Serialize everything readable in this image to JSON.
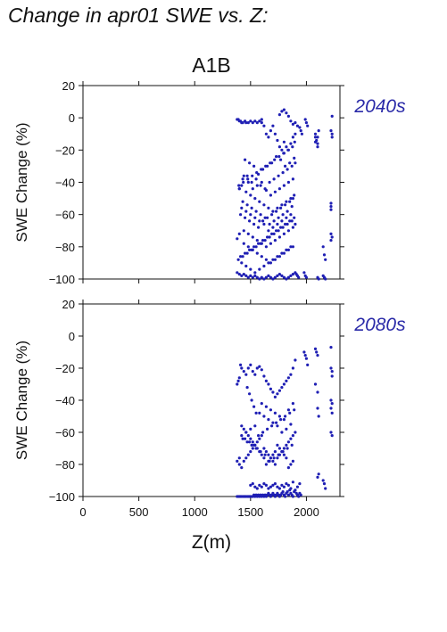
{
  "title": "Change in apr01 SWE vs. Z:",
  "scenario": "A1B",
  "colors": {
    "points": "#1f1fb4",
    "period_label": "#2a2aa8",
    "axis": "#111111"
  },
  "chart_data": [
    {
      "type": "scatter",
      "period": "2040s",
      "ylabel": "SWE Change (%)",
      "xlabel": "",
      "xlim": [
        0,
        2300
      ],
      "ylim": [
        -100,
        20
      ],
      "yticks": [
        20,
        0,
        -20,
        -40,
        -60,
        -80,
        -100
      ],
      "xticks": [
        0,
        500,
        1000,
        1500,
        2000
      ],
      "show_xtick_labels": false,
      "grid": false,
      "series": [
        {
          "x": [
            1380,
            1390,
            1400,
            1410,
            1420,
            1430,
            1450,
            1460,
            1480,
            1500,
            1520,
            1540,
            1560,
            1580,
            1600,
            1600,
            1620,
            1640,
            1660,
            1680,
            1700,
            1720,
            1740,
            1760,
            1780,
            1800,
            1800,
            1820,
            1840,
            1860,
            1880,
            1900,
            1890,
            1850,
            1810,
            1770,
            1730,
            1690,
            1650,
            1610,
            1570,
            1530,
            1490,
            1450,
            1420,
            1400,
            1430,
            1470,
            1510,
            1550,
            1590,
            1630,
            1670,
            1710,
            1750,
            1790,
            1830,
            1870,
            1900,
            1880,
            1840,
            1800,
            1760,
            1720,
            1680,
            1640,
            1600,
            1560,
            1520,
            1480,
            1440,
            1400,
            1460,
            1500,
            1540,
            1580,
            1620,
            1660,
            1700,
            1740,
            1780,
            1820,
            1860,
            1890,
            1870,
            1830,
            1790,
            1750,
            1710,
            1670,
            1630,
            1590,
            1550,
            1510,
            1470,
            1430,
            1410,
            1450,
            1490,
            1530,
            1570,
            1610,
            1650,
            1690,
            1730,
            1770,
            1810,
            1850,
            1880,
            1860,
            1820,
            1780,
            1740,
            1700,
            1660,
            1620,
            1580,
            1540,
            1500,
            1460,
            1420,
            1380,
            1400,
            1440,
            1480,
            1520,
            1560,
            1600,
            1640,
            1680,
            1720,
            1760,
            1800,
            1840,
            1880,
            1900,
            1870,
            1830,
            1790,
            1750,
            1710,
            1670,
            1630,
            1590,
            1550,
            1510,
            1470,
            1430,
            1390,
            1410,
            1450,
            1490,
            1530,
            1570,
            1610,
            1650,
            1690,
            1730,
            1770,
            1810,
            1850,
            1890,
            1880,
            1840,
            1800,
            1760,
            1720,
            1680,
            1640,
            1600,
            1560,
            1520,
            1480,
            1440,
            1420,
            1460,
            1500,
            1540,
            1580,
            1620,
            1660,
            1700,
            1740,
            1780,
            1820,
            1860,
            1895,
            1875,
            1835,
            1795,
            1755,
            1715,
            1675,
            1635,
            1595,
            1555,
            1515,
            1475,
            1435,
            1395,
            1380,
            1400,
            1420,
            1440,
            1460,
            1480,
            1500,
            1520,
            1540,
            1560,
            1580,
            1600,
            1620,
            1640,
            1660,
            1680,
            1700,
            1720,
            1740,
            1760,
            1780,
            1800,
            1820,
            1840,
            1860,
            1880,
            1900,
            1910,
            1920,
            1930,
            1760,
            1780,
            1800,
            1820,
            1840,
            1860,
            1880,
            1900,
            1920,
            1940,
            1950,
            1960,
            1990,
            2000,
            2010,
            2080,
            2090,
            2100,
            2110,
            2080,
            2100,
            2080,
            2100,
            2150,
            2160,
            2170,
            2220,
            2220,
            2220,
            2220,
            2230,
            2220,
            2230,
            2220,
            2230,
            2230,
            2150,
            2160,
            2170,
            2100,
            2110,
            1980,
            1990,
            2000
          ],
          "y": [
            -1,
            -1,
            -2,
            -2,
            -3,
            -3,
            -2,
            -3,
            -3,
            -2,
            -3,
            -2,
            -3,
            -2,
            -3,
            -1,
            -5,
            -10,
            -12,
            -8,
            -5,
            -10,
            -14,
            -18,
            -20,
            -22,
            -15,
            -18,
            -20,
            -16,
            -12,
            -10,
            -25,
            -28,
            -30,
            -26,
            -24,
            -28,
            -30,
            -32,
            -35,
            -30,
            -28,
            -26,
            -42,
            -44,
            -38,
            -36,
            -40,
            -38,
            -42,
            -44,
            -40,
            -38,
            -36,
            -34,
            -32,
            -30,
            -28,
            -38,
            -40,
            -42,
            -44,
            -46,
            -48,
            -45,
            -40,
            -42,
            -44,
            -40,
            -36,
            -44,
            -46,
            -48,
            -50,
            -52,
            -54,
            -56,
            -58,
            -56,
            -54,
            -52,
            -50,
            -48,
            -55,
            -58,
            -60,
            -62,
            -64,
            -66,
            -62,
            -60,
            -58,
            -56,
            -54,
            -52,
            -60,
            -62,
            -64,
            -66,
            -68,
            -64,
            -62,
            -60,
            -58,
            -56,
            -54,
            -52,
            -50,
            -60,
            -62,
            -64,
            -66,
            -68,
            -70,
            -66,
            -64,
            -62,
            -60,
            -58,
            -56,
            -75,
            -72,
            -70,
            -72,
            -74,
            -76,
            -78,
            -80,
            -78,
            -76,
            -74,
            -72,
            -70,
            -68,
            -66,
            -64,
            -66,
            -68,
            -70,
            -72,
            -74,
            -76,
            -78,
            -80,
            -82,
            -84,
            -86,
            -88,
            -86,
            -84,
            -82,
            -80,
            -78,
            -76,
            -74,
            -72,
            -70,
            -68,
            -66,
            -64,
            -62,
            -80,
            -82,
            -84,
            -86,
            -88,
            -90,
            -88,
            -86,
            -84,
            -82,
            -80,
            -78,
            -90,
            -92,
            -94,
            -96,
            -94,
            -92,
            -90,
            -88,
            -86,
            -84,
            -82,
            -80,
            -15,
            -18,
            -20,
            -22,
            -24,
            -26,
            -28,
            -30,
            -32,
            -34,
            -36,
            -38,
            -40,
            -42,
            -96,
            -97,
            -98,
            -97,
            -98,
            -99,
            -98,
            -99,
            -98,
            -99,
            -100,
            -99,
            -100,
            -99,
            -98,
            -99,
            -100,
            -99,
            -98,
            -97,
            -98,
            -99,
            -100,
            -99,
            -98,
            -97,
            -96,
            -97,
            -98,
            -99,
            2,
            4,
            5,
            3,
            1,
            -2,
            -4,
            -3,
            -5,
            -6,
            -8,
            -10,
            -1,
            -3,
            -5,
            -12,
            -14,
            -16,
            -8,
            -10,
            -12,
            -15,
            -18,
            -80,
            -85,
            -88,
            -53,
            -55,
            -57,
            -72,
            -74,
            -76,
            1,
            -8,
            -10,
            -12,
            -98,
            -99,
            -100,
            -99,
            -100,
            -96,
            -98,
            -99
          ]
        }
      ]
    },
    {
      "type": "scatter",
      "period": "2080s",
      "ylabel": "SWE Change (%)",
      "xlabel": "Z(m)",
      "xlim": [
        0,
        2300
      ],
      "ylim": [
        -100,
        20
      ],
      "yticks": [
        20,
        0,
        -20,
        -40,
        -60,
        -80,
        -100
      ],
      "xticks": [
        0,
        500,
        1000,
        1500,
        2000
      ],
      "show_xtick_labels": true,
      "grid": false,
      "series": [
        {
          "x": [
            1380,
            1390,
            1400,
            1410,
            1420,
            1440,
            1460,
            1480,
            1500,
            1520,
            1540,
            1560,
            1580,
            1600,
            1620,
            1640,
            1660,
            1680,
            1700,
            1720,
            1740,
            1760,
            1780,
            1800,
            1820,
            1840,
            1860,
            1880,
            1900,
            1470,
            1490,
            1510,
            1530,
            1550,
            1600,
            1640,
            1680,
            1720,
            1760,
            1800,
            1840,
            1880,
            1860,
            1820,
            1780,
            1740,
            1700,
            1660,
            1620,
            1580,
            1540,
            1500,
            1460,
            1420,
            1450,
            1490,
            1530,
            1570,
            1610,
            1650,
            1690,
            1730,
            1770,
            1810,
            1850,
            1890,
            1870,
            1830,
            1790,
            1750,
            1710,
            1670,
            1630,
            1590,
            1550,
            1510,
            1470,
            1430,
            1400,
            1420,
            1440,
            1460,
            1480,
            1500,
            1520,
            1540,
            1560,
            1580,
            1600,
            1620,
            1640,
            1660,
            1680,
            1700,
            1720,
            1740,
            1760,
            1780,
            1800,
            1820,
            1840,
            1860,
            1880,
            1900,
            1880,
            1860,
            1840,
            1820,
            1800,
            1780,
            1760,
            1740,
            1720,
            1700,
            1680,
            1660,
            1640,
            1620,
            1600,
            1580,
            1560,
            1540,
            1520,
            1500,
            1480,
            1460,
            1440,
            1420,
            1400,
            1380,
            1380,
            1390,
            1400,
            1410,
            1420,
            1430,
            1440,
            1450,
            1460,
            1470,
            1480,
            1490,
            1500,
            1510,
            1520,
            1530,
            1540,
            1550,
            1560,
            1570,
            1580,
            1590,
            1600,
            1610,
            1620,
            1630,
            1640,
            1650,
            1660,
            1670,
            1680,
            1690,
            1700,
            1710,
            1720,
            1730,
            1740,
            1750,
            1760,
            1770,
            1780,
            1790,
            1800,
            1810,
            1820,
            1830,
            1840,
            1850,
            1860,
            1870,
            1880,
            1890,
            1900,
            1910,
            1920,
            1930,
            1940,
            1950,
            1800,
            1820,
            1840,
            1860,
            1880,
            1900,
            1920,
            1940,
            1500,
            1520,
            1540,
            1560,
            1580,
            1600,
            1620,
            1640,
            1660,
            1680,
            1700,
            1720,
            1740,
            1760,
            1780,
            1980,
            1990,
            2000,
            2010,
            2080,
            2090,
            2100,
            2100,
            2110,
            2080,
            2100,
            2220,
            2220,
            2230,
            2230,
            2220,
            2230,
            2220,
            2230,
            2150,
            2160,
            2170,
            2100,
            2110,
            2220,
            2230
          ],
          "y": [
            -30,
            -28,
            -26,
            -18,
            -20,
            -22,
            -24,
            -20,
            -18,
            -22,
            -24,
            -20,
            -19,
            -21,
            -25,
            -28,
            -30,
            -33,
            -35,
            -38,
            -36,
            -34,
            -32,
            -30,
            -28,
            -26,
            -24,
            -20,
            -15,
            -32,
            -36,
            -40,
            -44,
            -48,
            -42,
            -44,
            -46,
            -48,
            -50,
            -52,
            -46,
            -42,
            -55,
            -58,
            -60,
            -56,
            -54,
            -52,
            -50,
            -48,
            -56,
            -58,
            -60,
            -62,
            -64,
            -66,
            -68,
            -62,
            -60,
            -58,
            -56,
            -54,
            -52,
            -50,
            -48,
            -46,
            -68,
            -70,
            -72,
            -74,
            -76,
            -78,
            -74,
            -72,
            -70,
            -68,
            -66,
            -64,
            -80,
            -82,
            -78,
            -76,
            -74,
            -72,
            -70,
            -68,
            -66,
            -64,
            -62,
            -70,
            -72,
            -74,
            -76,
            -78,
            -80,
            -76,
            -74,
            -72,
            -70,
            -68,
            -66,
            -64,
            -62,
            -60,
            -78,
            -80,
            -82,
            -76,
            -74,
            -72,
            -70,
            -68,
            -72,
            -74,
            -76,
            -78,
            -80,
            -76,
            -74,
            -72,
            -70,
            -68,
            -66,
            -64,
            -62,
            -60,
            -58,
            -56,
            -76,
            -78,
            -100,
            -100,
            -100,
            -100,
            -100,
            -100,
            -100,
            -100,
            -100,
            -100,
            -100,
            -100,
            -100,
            -100,
            -100,
            -99,
            -100,
            -99,
            -100,
            -99,
            -100,
            -99,
            -100,
            -99,
            -100,
            -99,
            -100,
            -99,
            -98,
            -99,
            -100,
            -99,
            -98,
            -99,
            -100,
            -99,
            -98,
            -99,
            -100,
            -99,
            -98,
            -97,
            -99,
            -100,
            -98,
            -97,
            -99,
            -96,
            -98,
            -99,
            -100,
            -97,
            -96,
            -98,
            -99,
            -100,
            -98,
            -99,
            -94,
            -92,
            -93,
            -95,
            -91,
            -96,
            -94,
            -92,
            -93,
            -92,
            -94,
            -95,
            -93,
            -94,
            -92,
            -93,
            -95,
            -94,
            -93,
            -92,
            -94,
            -95,
            -93,
            -10,
            -12,
            -14,
            -18,
            -8,
            -10,
            -12,
            -45,
            -50,
            -30,
            -35,
            -7,
            -20,
            -22,
            -25,
            -40,
            -42,
            -45,
            -48,
            -90,
            -92,
            -95,
            -88,
            -86,
            -60,
            -62
          ]
        }
      ]
    }
  ]
}
